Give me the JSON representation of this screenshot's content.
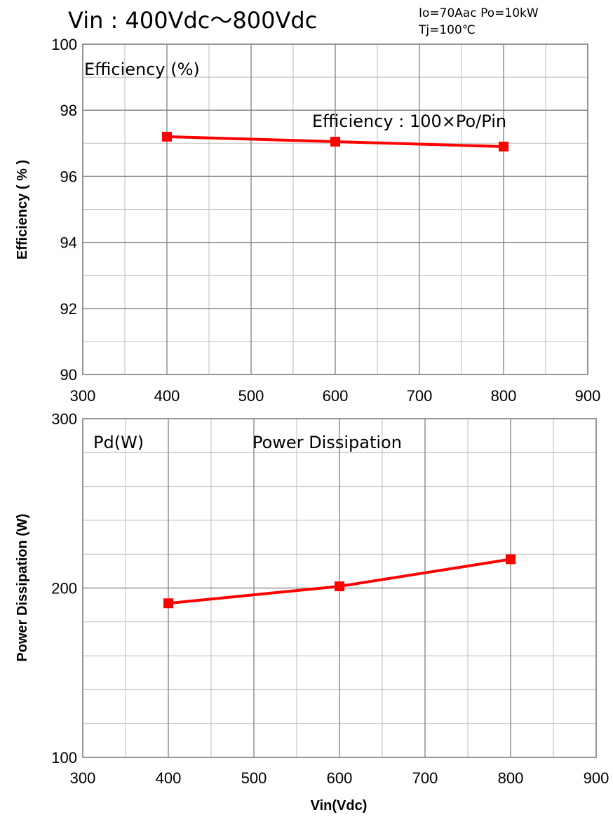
{
  "header": {
    "title": "Vin : 400Vdc〜800Vdc",
    "cond_line1": "Io=70Aac Po=10kW",
    "cond_line2": "Tj=100℃"
  },
  "colors": {
    "series": "#ff0000",
    "grid": "#808080",
    "gridMinor": "#bdbdbd"
  },
  "chart_data": [
    {
      "type": "line",
      "title": "",
      "corner_label": "Efficiency (%)",
      "annotation": "Efficiency : 100×Po/Pin",
      "xlabel": "",
      "ylabel": "Efficiency ( % )",
      "xlim": [
        300,
        900
      ],
      "ylim": [
        90,
        100
      ],
      "x_ticks": [
        "300",
        "400",
        "500",
        "600",
        "700",
        "800",
        "900"
      ],
      "y_ticks": [
        "90",
        "92",
        "94",
        "96",
        "98",
        "100"
      ],
      "grid": true,
      "legend": "none",
      "series": [
        {
          "x": [
            400,
            600,
            800
          ],
          "values": [
            97.2,
            97.05,
            96.9
          ]
        }
      ]
    },
    {
      "type": "line",
      "title": "",
      "corner_label": "Pd(W)",
      "annotation": "Power Dissipation",
      "xlabel": "Vin(Vdc)",
      "ylabel": "Power Dissipation (W)",
      "xlim": [
        300,
        900
      ],
      "ylim": [
        100,
        300
      ],
      "x_ticks": [
        "300",
        "400",
        "500",
        "600",
        "700",
        "800",
        "900"
      ],
      "y_ticks": [
        "100",
        "200",
        "300"
      ],
      "grid": true,
      "legend": "none",
      "series": [
        {
          "x": [
            400,
            600,
            800
          ],
          "values": [
            191,
            201,
            217
          ]
        }
      ]
    }
  ]
}
